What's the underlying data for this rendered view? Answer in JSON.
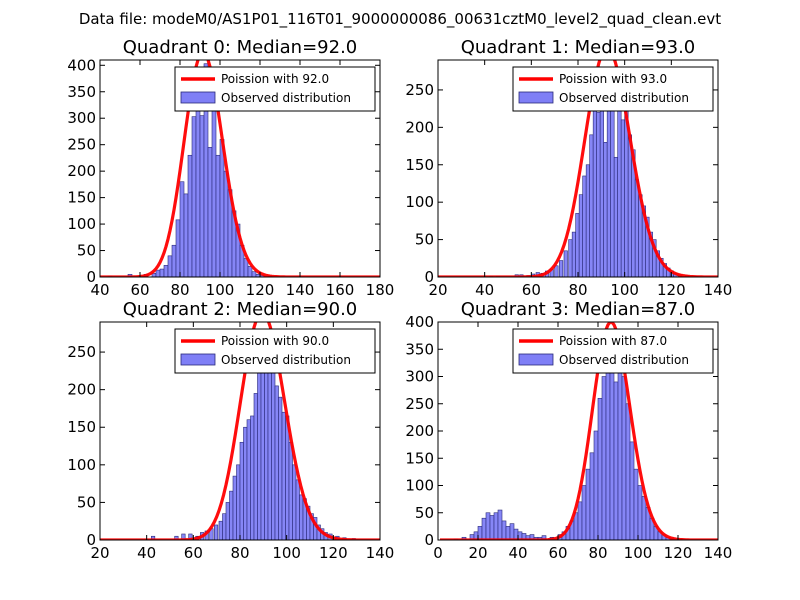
{
  "figure": {
    "suptitle": "Data file: modeM0/AS1P01_116T01_9000000086_00631cztM0_level2_quad_clean.evt"
  },
  "colors": {
    "fit_line": "#ff0000",
    "bar_fill": "#7f7ff6",
    "bar_stroke": "#2a2a7a",
    "axes": "#000000"
  },
  "chart_data": [
    {
      "type": "bar",
      "title": "Quadrant 0: Median=92.0",
      "xlim": [
        40,
        180
      ],
      "ylim": [
        0,
        410
      ],
      "xticks": [
        40,
        60,
        80,
        100,
        120,
        140,
        160,
        180
      ],
      "yticks": [
        0,
        50,
        100,
        150,
        200,
        250,
        300,
        350,
        400
      ],
      "legend": [
        "Poission with 92.0",
        "Observed distribution"
      ],
      "bin_width": 2,
      "bins": [
        [
          44,
          2
        ],
        [
          54,
          5
        ],
        [
          62,
          5
        ],
        [
          66,
          7
        ],
        [
          68,
          13
        ],
        [
          70,
          15
        ],
        [
          72,
          22
        ],
        [
          74,
          40
        ],
        [
          76,
          60
        ],
        [
          78,
          108
        ],
        [
          80,
          180
        ],
        [
          82,
          157
        ],
        [
          84,
          230
        ],
        [
          86,
          303
        ],
        [
          88,
          342
        ],
        [
          90,
          305
        ],
        [
          92,
          403
        ],
        [
          94,
          245
        ],
        [
          96,
          343
        ],
        [
          98,
          230
        ],
        [
          100,
          260
        ],
        [
          102,
          200
        ],
        [
          104,
          165
        ],
        [
          106,
          125
        ],
        [
          108,
          100
        ],
        [
          110,
          60
        ],
        [
          112,
          35
        ],
        [
          114,
          20
        ],
        [
          116,
          10
        ],
        [
          118,
          5
        ],
        [
          120,
          3
        ],
        [
          124,
          2
        ]
      ],
      "poisson": {
        "mu": 92,
        "scale": 10200
      }
    },
    {
      "type": "bar",
      "title": "Quadrant 1: Median=93.0",
      "xlim": [
        20,
        140
      ],
      "ylim": [
        0,
        290
      ],
      "xticks": [
        20,
        40,
        60,
        80,
        100,
        120,
        140
      ],
      "yticks": [
        0,
        50,
        100,
        150,
        200,
        250
      ],
      "legend": [
        "Poission with 93.0",
        "Observed distribution"
      ],
      "bin_width": 1.5,
      "bins": [
        [
          42,
          1
        ],
        [
          45,
          1
        ],
        [
          53,
          3
        ],
        [
          55,
          3
        ],
        [
          58,
          2
        ],
        [
          60,
          4
        ],
        [
          62,
          6
        ],
        [
          64,
          5
        ],
        [
          66,
          8
        ],
        [
          68,
          10
        ],
        [
          70,
          15
        ],
        [
          72,
          22
        ],
        [
          74,
          35
        ],
        [
          76,
          50
        ],
        [
          77.5,
          60
        ],
        [
          79,
          85
        ],
        [
          80.5,
          110
        ],
        [
          82,
          135
        ],
        [
          83.5,
          150
        ],
        [
          85,
          190
        ],
        [
          86.5,
          230
        ],
        [
          88,
          220
        ],
        [
          89.5,
          248
        ],
        [
          91,
          180
        ],
        [
          92.5,
          270
        ],
        [
          94,
          265
        ],
        [
          95.5,
          160
        ],
        [
          97,
          275
        ],
        [
          98.5,
          210
        ],
        [
          100,
          250
        ],
        [
          101.5,
          190
        ],
        [
          103,
          170
        ],
        [
          104.5,
          130
        ],
        [
          106,
          110
        ],
        [
          107.5,
          95
        ],
        [
          109,
          80
        ],
        [
          110.5,
          60
        ],
        [
          112,
          50
        ],
        [
          113.5,
          35
        ],
        [
          115,
          25
        ],
        [
          116.5,
          18
        ],
        [
          118,
          12
        ],
        [
          119.5,
          8
        ],
        [
          121,
          5
        ],
        [
          123,
          3
        ],
        [
          126,
          2
        ],
        [
          130,
          1
        ]
      ],
      "poisson": {
        "mu": 93,
        "scale": 7400
      }
    },
    {
      "type": "bar",
      "title": "Quadrant 2: Median=90.0",
      "xlim": [
        20,
        140
      ],
      "ylim": [
        0,
        290
      ],
      "xticks": [
        20,
        40,
        60,
        80,
        100,
        120,
        140
      ],
      "yticks": [
        0,
        50,
        100,
        150,
        200,
        250
      ],
      "legend": [
        "Poission with 90.0",
        "Observed distribution"
      ],
      "bin_width": 1.5,
      "bins": [
        [
          42,
          5
        ],
        [
          52,
          5
        ],
        [
          55,
          8
        ],
        [
          58,
          8
        ],
        [
          61,
          5
        ],
        [
          63,
          10
        ],
        [
          65,
          12
        ],
        [
          67,
          15
        ],
        [
          69,
          20
        ],
        [
          71,
          25
        ],
        [
          72.5,
          35
        ],
        [
          74,
          50
        ],
        [
          75.5,
          65
        ],
        [
          77,
          85
        ],
        [
          78.5,
          100
        ],
        [
          80,
          130
        ],
        [
          81.5,
          150
        ],
        [
          83,
          160
        ],
        [
          84.5,
          165
        ],
        [
          86,
          195
        ],
        [
          87.5,
          230
        ],
        [
          89,
          250
        ],
        [
          90.5,
          270
        ],
        [
          92,
          280
        ],
        [
          93.5,
          250
        ],
        [
          95,
          205
        ],
        [
          96.5,
          190
        ],
        [
          98,
          170
        ],
        [
          99.5,
          165
        ],
        [
          101,
          130
        ],
        [
          102.5,
          100
        ],
        [
          104,
          80
        ],
        [
          105.5,
          60
        ],
        [
          107,
          55
        ],
        [
          108.5,
          45
        ],
        [
          110,
          35
        ],
        [
          111.5,
          30
        ],
        [
          113,
          20
        ],
        [
          114.5,
          15
        ],
        [
          116,
          10
        ],
        [
          118,
          8
        ],
        [
          121,
          5
        ],
        [
          124,
          3
        ],
        [
          128,
          2
        ]
      ],
      "poisson": {
        "mu": 90,
        "scale": 7200
      }
    },
    {
      "type": "bar",
      "title": "Quadrant 3: Median=87.0",
      "xlim": [
        0,
        140
      ],
      "ylim": [
        0,
        400
      ],
      "xticks": [
        0,
        20,
        40,
        60,
        80,
        100,
        120,
        140
      ],
      "yticks": [
        0,
        50,
        100,
        150,
        200,
        250,
        300,
        350,
        400
      ],
      "legend": [
        "Poission with 87.0",
        "Observed distribution"
      ],
      "bin_width": 2,
      "bins": [
        [
          8,
          2
        ],
        [
          12,
          5
        ],
        [
          16,
          10
        ],
        [
          18,
          15
        ],
        [
          20,
          25
        ],
        [
          22,
          40
        ],
        [
          24,
          50
        ],
        [
          26,
          45
        ],
        [
          28,
          50
        ],
        [
          30,
          55
        ],
        [
          32,
          35
        ],
        [
          34,
          25
        ],
        [
          36,
          30
        ],
        [
          38,
          20
        ],
        [
          40,
          15
        ],
        [
          42,
          12
        ],
        [
          44,
          8
        ],
        [
          46,
          10
        ],
        [
          48,
          5
        ],
        [
          50,
          5
        ],
        [
          52,
          8
        ],
        [
          56,
          5
        ],
        [
          60,
          10
        ],
        [
          62,
          15
        ],
        [
          64,
          25
        ],
        [
          66,
          35
        ],
        [
          68,
          50
        ],
        [
          70,
          70
        ],
        [
          72,
          100
        ],
        [
          74,
          130
        ],
        [
          76,
          160
        ],
        [
          78,
          200
        ],
        [
          80,
          260
        ],
        [
          82,
          300
        ],
        [
          84,
          340
        ],
        [
          86,
          380
        ],
        [
          88,
          290
        ],
        [
          90,
          340
        ],
        [
          92,
          300
        ],
        [
          94,
          250
        ],
        [
          96,
          180
        ],
        [
          98,
          130
        ],
        [
          100,
          100
        ],
        [
          102,
          80
        ],
        [
          104,
          60
        ],
        [
          106,
          40
        ],
        [
          108,
          25
        ],
        [
          110,
          15
        ],
        [
          112,
          10
        ],
        [
          114,
          5
        ],
        [
          116,
          3
        ],
        [
          120,
          2
        ]
      ],
      "poisson": {
        "mu": 87,
        "scale": 9350
      }
    }
  ]
}
